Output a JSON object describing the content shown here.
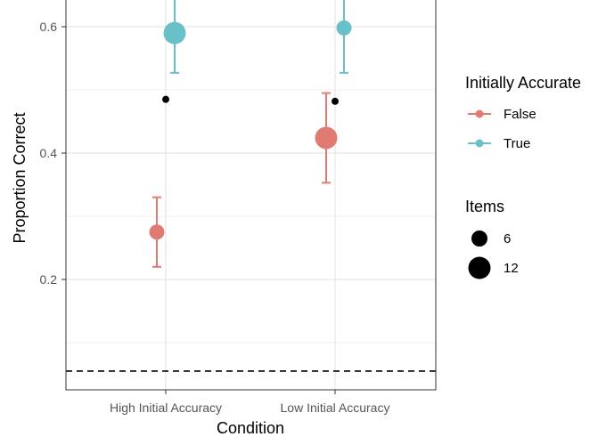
{
  "chart_data": {
    "type": "scatter",
    "title": "",
    "xlabel": "Condition",
    "ylabel": "Proportion Correct",
    "categories": [
      "High Initial Accuracy",
      "Low Initial Accuracy"
    ],
    "ylim": [
      0.03,
      0.64
    ],
    "yticks": [
      "0.2",
      "0.4",
      "0.6"
    ],
    "grid": true,
    "reference_line": {
      "y": 0.055,
      "style": "dashed"
    },
    "series": [
      {
        "name": "False",
        "color": "#E07B72",
        "points": [
          {
            "category": "High Initial Accuracy",
            "y": 0.275,
            "ymin": 0.22,
            "ymax": 0.33,
            "items": 6
          },
          {
            "category": "Low Initial Accuracy",
            "y": 0.424,
            "ymin": 0.353,
            "ymax": 0.495,
            "items": 12
          }
        ]
      },
      {
        "name": "True",
        "color": "#69C0C8",
        "points": [
          {
            "category": "High Initial Accuracy",
            "y": 0.59,
            "ymin": 0.527,
            "ymax": 0.66,
            "items": 12
          },
          {
            "category": "Low Initial Accuracy",
            "y": 0.598,
            "ymin": 0.527,
            "ymax": 0.66,
            "items": 6
          }
        ]
      }
    ],
    "extra_points": {
      "color": "#000000",
      "points": [
        {
          "category": "High Initial Accuracy",
          "y": 0.485
        },
        {
          "category": "Low Initial Accuracy",
          "y": 0.482
        }
      ]
    },
    "legend": {
      "placement": "right",
      "color_title": "Initially Accurate",
      "color_entries": [
        "False",
        "True"
      ],
      "size_title": "Items",
      "size_entries": [
        "6",
        "12"
      ]
    }
  }
}
